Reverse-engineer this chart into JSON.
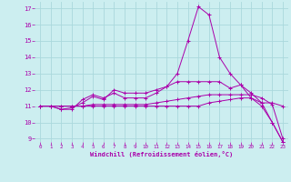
{
  "background_color": "#cceef0",
  "grid_color": "#aad8dc",
  "line_color": "#aa00aa",
  "xlim": [
    -0.5,
    23.5
  ],
  "ylim": [
    8.8,
    17.4
  ],
  "xticks": [
    0,
    1,
    2,
    3,
    4,
    5,
    6,
    7,
    8,
    9,
    10,
    11,
    12,
    13,
    14,
    15,
    16,
    17,
    18,
    19,
    20,
    21,
    22,
    23
  ],
  "yticks": [
    9,
    10,
    11,
    12,
    13,
    14,
    15,
    16,
    17
  ],
  "xlabel": "Windchill (Refroidissement éolien,°C)",
  "series": [
    {
      "x": [
        0,
        1,
        2,
        3,
        4,
        5,
        6,
        7,
        8,
        9,
        10,
        11,
        12,
        13,
        14,
        15,
        16,
        17,
        18,
        19,
        20,
        21,
        22,
        23
      ],
      "y": [
        11,
        11,
        10.8,
        10.8,
        11.4,
        11.7,
        11.5,
        11.8,
        11.5,
        11.5,
        11.5,
        11.8,
        12.2,
        13.0,
        15.0,
        17.1,
        16.6,
        14.0,
        13.0,
        12.3,
        11.5,
        11.0,
        10.0,
        8.8
      ]
    },
    {
      "x": [
        0,
        1,
        2,
        3,
        4,
        5,
        6,
        7,
        8,
        9,
        10,
        11,
        12,
        13,
        14,
        15,
        16,
        17,
        18,
        19,
        20,
        21,
        22,
        23
      ],
      "y": [
        11,
        11,
        10.8,
        10.9,
        11.2,
        11.6,
        11.4,
        12.0,
        11.8,
        11.8,
        11.8,
        12.0,
        12.2,
        12.5,
        12.5,
        12.5,
        12.5,
        12.5,
        12.1,
        12.3,
        11.8,
        11.2,
        11.2,
        11.0
      ]
    },
    {
      "x": [
        0,
        1,
        2,
        3,
        4,
        5,
        6,
        7,
        8,
        9,
        10,
        11,
        12,
        13,
        14,
        15,
        16,
        17,
        18,
        19,
        20,
        21,
        22,
        23
      ],
      "y": [
        11,
        11,
        11.0,
        11.0,
        11.0,
        11.1,
        11.1,
        11.1,
        11.1,
        11.1,
        11.1,
        11.2,
        11.3,
        11.4,
        11.5,
        11.6,
        11.7,
        11.7,
        11.7,
        11.7,
        11.7,
        11.5,
        11.1,
        9.0
      ]
    },
    {
      "x": [
        0,
        1,
        2,
        3,
        4,
        5,
        6,
        7,
        8,
        9,
        10,
        11,
        12,
        13,
        14,
        15,
        16,
        17,
        18,
        19,
        20,
        21,
        22,
        23
      ],
      "y": [
        11,
        11,
        11.0,
        11.0,
        11.0,
        11.0,
        11.0,
        11.0,
        11.0,
        11.0,
        11.0,
        11.0,
        11.0,
        11.0,
        11.0,
        11.0,
        11.2,
        11.3,
        11.4,
        11.5,
        11.5,
        11.2,
        10.0,
        8.8
      ]
    }
  ]
}
